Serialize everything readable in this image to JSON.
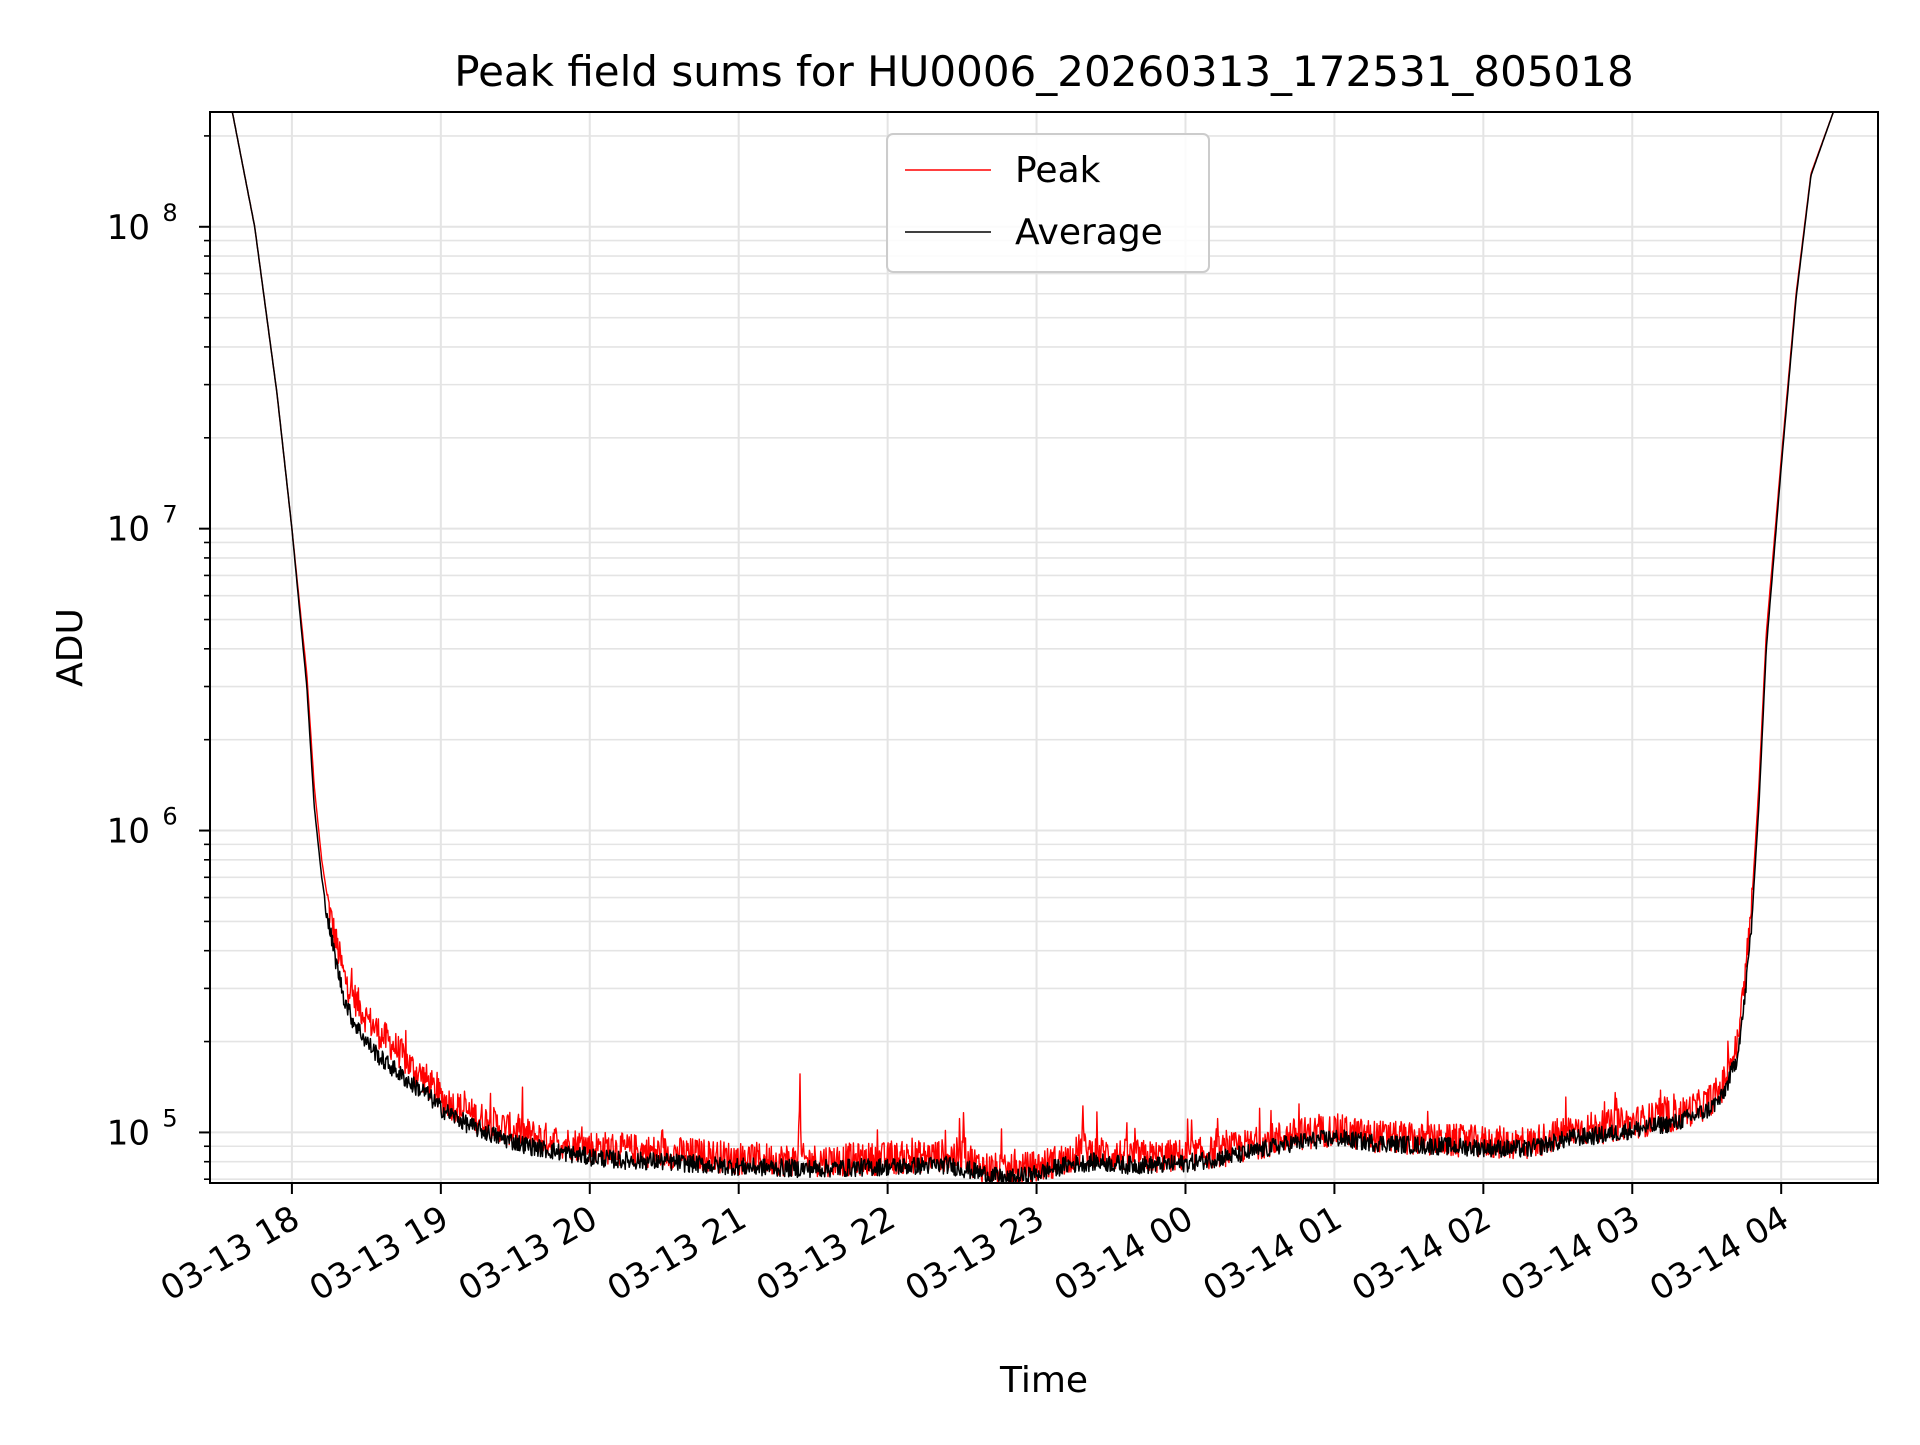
{
  "chart_data": {
    "type": "line",
    "title": "Peak field sums for HU0006_20260313_172531_805018",
    "xlabel": "Time",
    "ylabel": "ADU",
    "yscale": "log",
    "ylim": [
      68000,
      240000000
    ],
    "xlim_hours": [
      -0.55,
      10.65
    ],
    "grid": "major and minor",
    "legend": "upper center",
    "x_ticks": [
      {
        "hour": 0,
        "label": "03-13 18"
      },
      {
        "hour": 1,
        "label": "03-13 19"
      },
      {
        "hour": 2,
        "label": "03-13 20"
      },
      {
        "hour": 3,
        "label": "03-13 21"
      },
      {
        "hour": 4,
        "label": "03-13 22"
      },
      {
        "hour": 5,
        "label": "03-13 23"
      },
      {
        "hour": 6,
        "label": "03-14 00"
      },
      {
        "hour": 7,
        "label": "03-14 01"
      },
      {
        "hour": 8,
        "label": "03-14 02"
      },
      {
        "hour": 9,
        "label": "03-14 03"
      },
      {
        "hour": 10,
        "label": "03-14 04"
      }
    ],
    "y_ticks": [
      {
        "value": 100000,
        "base": "10",
        "exp": "5"
      },
      {
        "value": 1000000,
        "base": "10",
        "exp": "6"
      },
      {
        "value": 10000000,
        "base": "10",
        "exp": "7"
      },
      {
        "value": 100000000,
        "base": "10",
        "exp": "8"
      }
    ],
    "series": [
      {
        "name": "Peak",
        "color": "#ff0000",
        "x_hours": [
          -0.4,
          -0.25,
          -0.1,
          0.0,
          0.1,
          0.15,
          0.2,
          0.25,
          0.3,
          0.35,
          0.4,
          0.5,
          0.6,
          0.7,
          0.8,
          0.9,
          1.0,
          1.2,
          1.4,
          1.6,
          1.8,
          2.0,
          2.2,
          2.5,
          2.8,
          3.0,
          3.4,
          3.41,
          3.42,
          3.6,
          4.0,
          4.4,
          4.5,
          4.51,
          4.52,
          4.6,
          4.8,
          5.0,
          5.2,
          5.3,
          5.31,
          5.32,
          5.4,
          5.6,
          5.8,
          6.0,
          6.2,
          6.4,
          6.7,
          7.0,
          7.2,
          7.5,
          8.0,
          8.3,
          8.6,
          8.8,
          9.0,
          9.3,
          9.5,
          9.6,
          9.65,
          9.7,
          9.75,
          9.8,
          9.85,
          9.9,
          10.0,
          10.1,
          10.2,
          10.35
        ],
        "values": [
          240000000,
          100000000,
          28000000,
          10000000,
          3300000,
          1400000,
          800000,
          550000,
          420000,
          330000,
          290000,
          240000,
          210000,
          190000,
          165000,
          150000,
          130000,
          115000,
          105000,
          98000,
          93000,
          90000,
          88000,
          86000,
          84000,
          82000,
          81000,
          155000,
          81000,
          81000,
          82000,
          84000,
          85000,
          125000,
          85000,
          78000,
          74000,
          77000,
          82000,
          88000,
          120000,
          88000,
          86000,
          84000,
          83000,
          84000,
          86000,
          90000,
          98000,
          102000,
          98000,
          95000,
          93000,
          92000,
          102000,
          104000,
          108000,
          114000,
          125000,
          140000,
          165000,
          190000,
          300000,
          550000,
          1400000,
          4500000,
          17000000,
          60000000,
          150000000,
          240000000
        ]
      },
      {
        "name": "Average",
        "color": "#000000",
        "x_hours": [
          -0.4,
          -0.25,
          -0.1,
          0.0,
          0.1,
          0.15,
          0.2,
          0.25,
          0.3,
          0.35,
          0.4,
          0.5,
          0.6,
          0.7,
          0.8,
          0.9,
          1.0,
          1.2,
          1.4,
          1.6,
          1.8,
          2.0,
          2.2,
          2.5,
          2.8,
          3.0,
          3.4,
          3.6,
          4.0,
          4.4,
          4.6,
          4.8,
          5.0,
          5.2,
          5.4,
          5.6,
          5.8,
          6.0,
          6.2,
          6.4,
          6.7,
          7.0,
          7.2,
          7.5,
          8.0,
          8.3,
          8.6,
          8.8,
          9.0,
          9.3,
          9.5,
          9.6,
          9.65,
          9.7,
          9.75,
          9.8,
          9.85,
          9.9,
          10.0,
          10.1,
          10.2,
          10.35
        ],
        "values": [
          240000000,
          100000000,
          28000000,
          10000000,
          3000000,
          1200000,
          700000,
          480000,
          360000,
          280000,
          240000,
          200000,
          175000,
          160000,
          145000,
          135000,
          120000,
          105000,
          96000,
          90000,
          86000,
          83000,
          81000,
          80000,
          78000,
          77000,
          76000,
          76000,
          77000,
          78000,
          74000,
          70000,
          73000,
          78000,
          80000,
          78000,
          78000,
          79000,
          82000,
          85000,
          92000,
          96000,
          93000,
          91000,
          89000,
          88000,
          96000,
          98000,
          102000,
          108000,
          118000,
          130000,
          150000,
          175000,
          260000,
          480000,
          1200000,
          4000000,
          16000000,
          58000000,
          148000000,
          240000000
        ]
      }
    ]
  }
}
